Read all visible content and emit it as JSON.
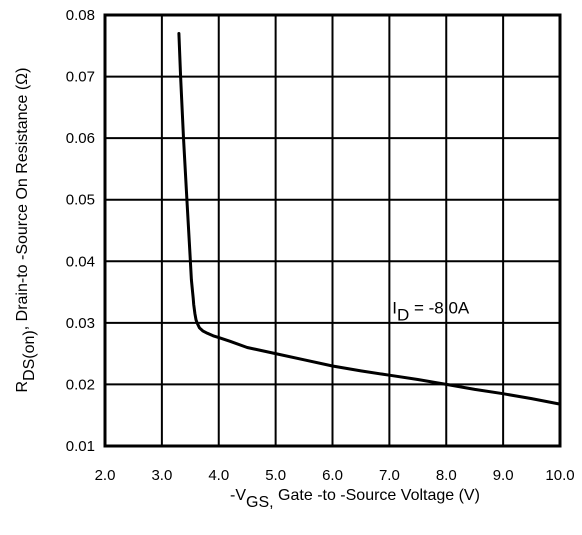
{
  "chart_data": {
    "type": "line",
    "title": "",
    "xlabel": {
      "prefix": "-V",
      "sub": "GS,",
      "text": " Gate -to -Source Voltage  (V)"
    },
    "ylabel": {
      "prefix": "R",
      "sub": "DS(on)",
      "text": ",  Drain-to -Source On Resistance (Ω)"
    },
    "xlim": [
      2.0,
      10.0
    ],
    "ylim": [
      0.01,
      0.08
    ],
    "x_ticks": [
      "2.0",
      "3.0",
      "4.0",
      "5.0",
      "6.0",
      "7.0",
      "8.0",
      "9.0",
      "10.0"
    ],
    "y_ticks": [
      "0.01",
      "0.02",
      "0.03",
      "0.04",
      "0.05",
      "0.06",
      "0.07",
      "0.08"
    ],
    "grid": true,
    "annotation": {
      "prefix": "I",
      "sub": "D",
      "text": " = -8.0A",
      "x": 7.05,
      "y": 0.0315
    },
    "series": [
      {
        "x": [
          3.3,
          3.33,
          3.38,
          3.44,
          3.49,
          3.52,
          3.54,
          3.55,
          3.56,
          3.58,
          3.6,
          3.62,
          3.66,
          3.72,
          3.8,
          3.9,
          4.0,
          4.2,
          4.5,
          5.0,
          5.5,
          6.0,
          6.5,
          7.0,
          7.5,
          8.0,
          8.5,
          9.0,
          9.5,
          10.0
        ],
        "y": [
          0.077,
          0.07,
          0.06,
          0.05,
          0.042,
          0.037,
          0.035,
          0.034,
          0.033,
          0.0315,
          0.0305,
          0.03,
          0.0292,
          0.0287,
          0.0283,
          0.0279,
          0.0276,
          0.027,
          0.026,
          0.025,
          0.024,
          0.023,
          0.0222,
          0.0215,
          0.0208,
          0.02,
          0.0192,
          0.0185,
          0.0177,
          0.0168
        ]
      }
    ]
  }
}
